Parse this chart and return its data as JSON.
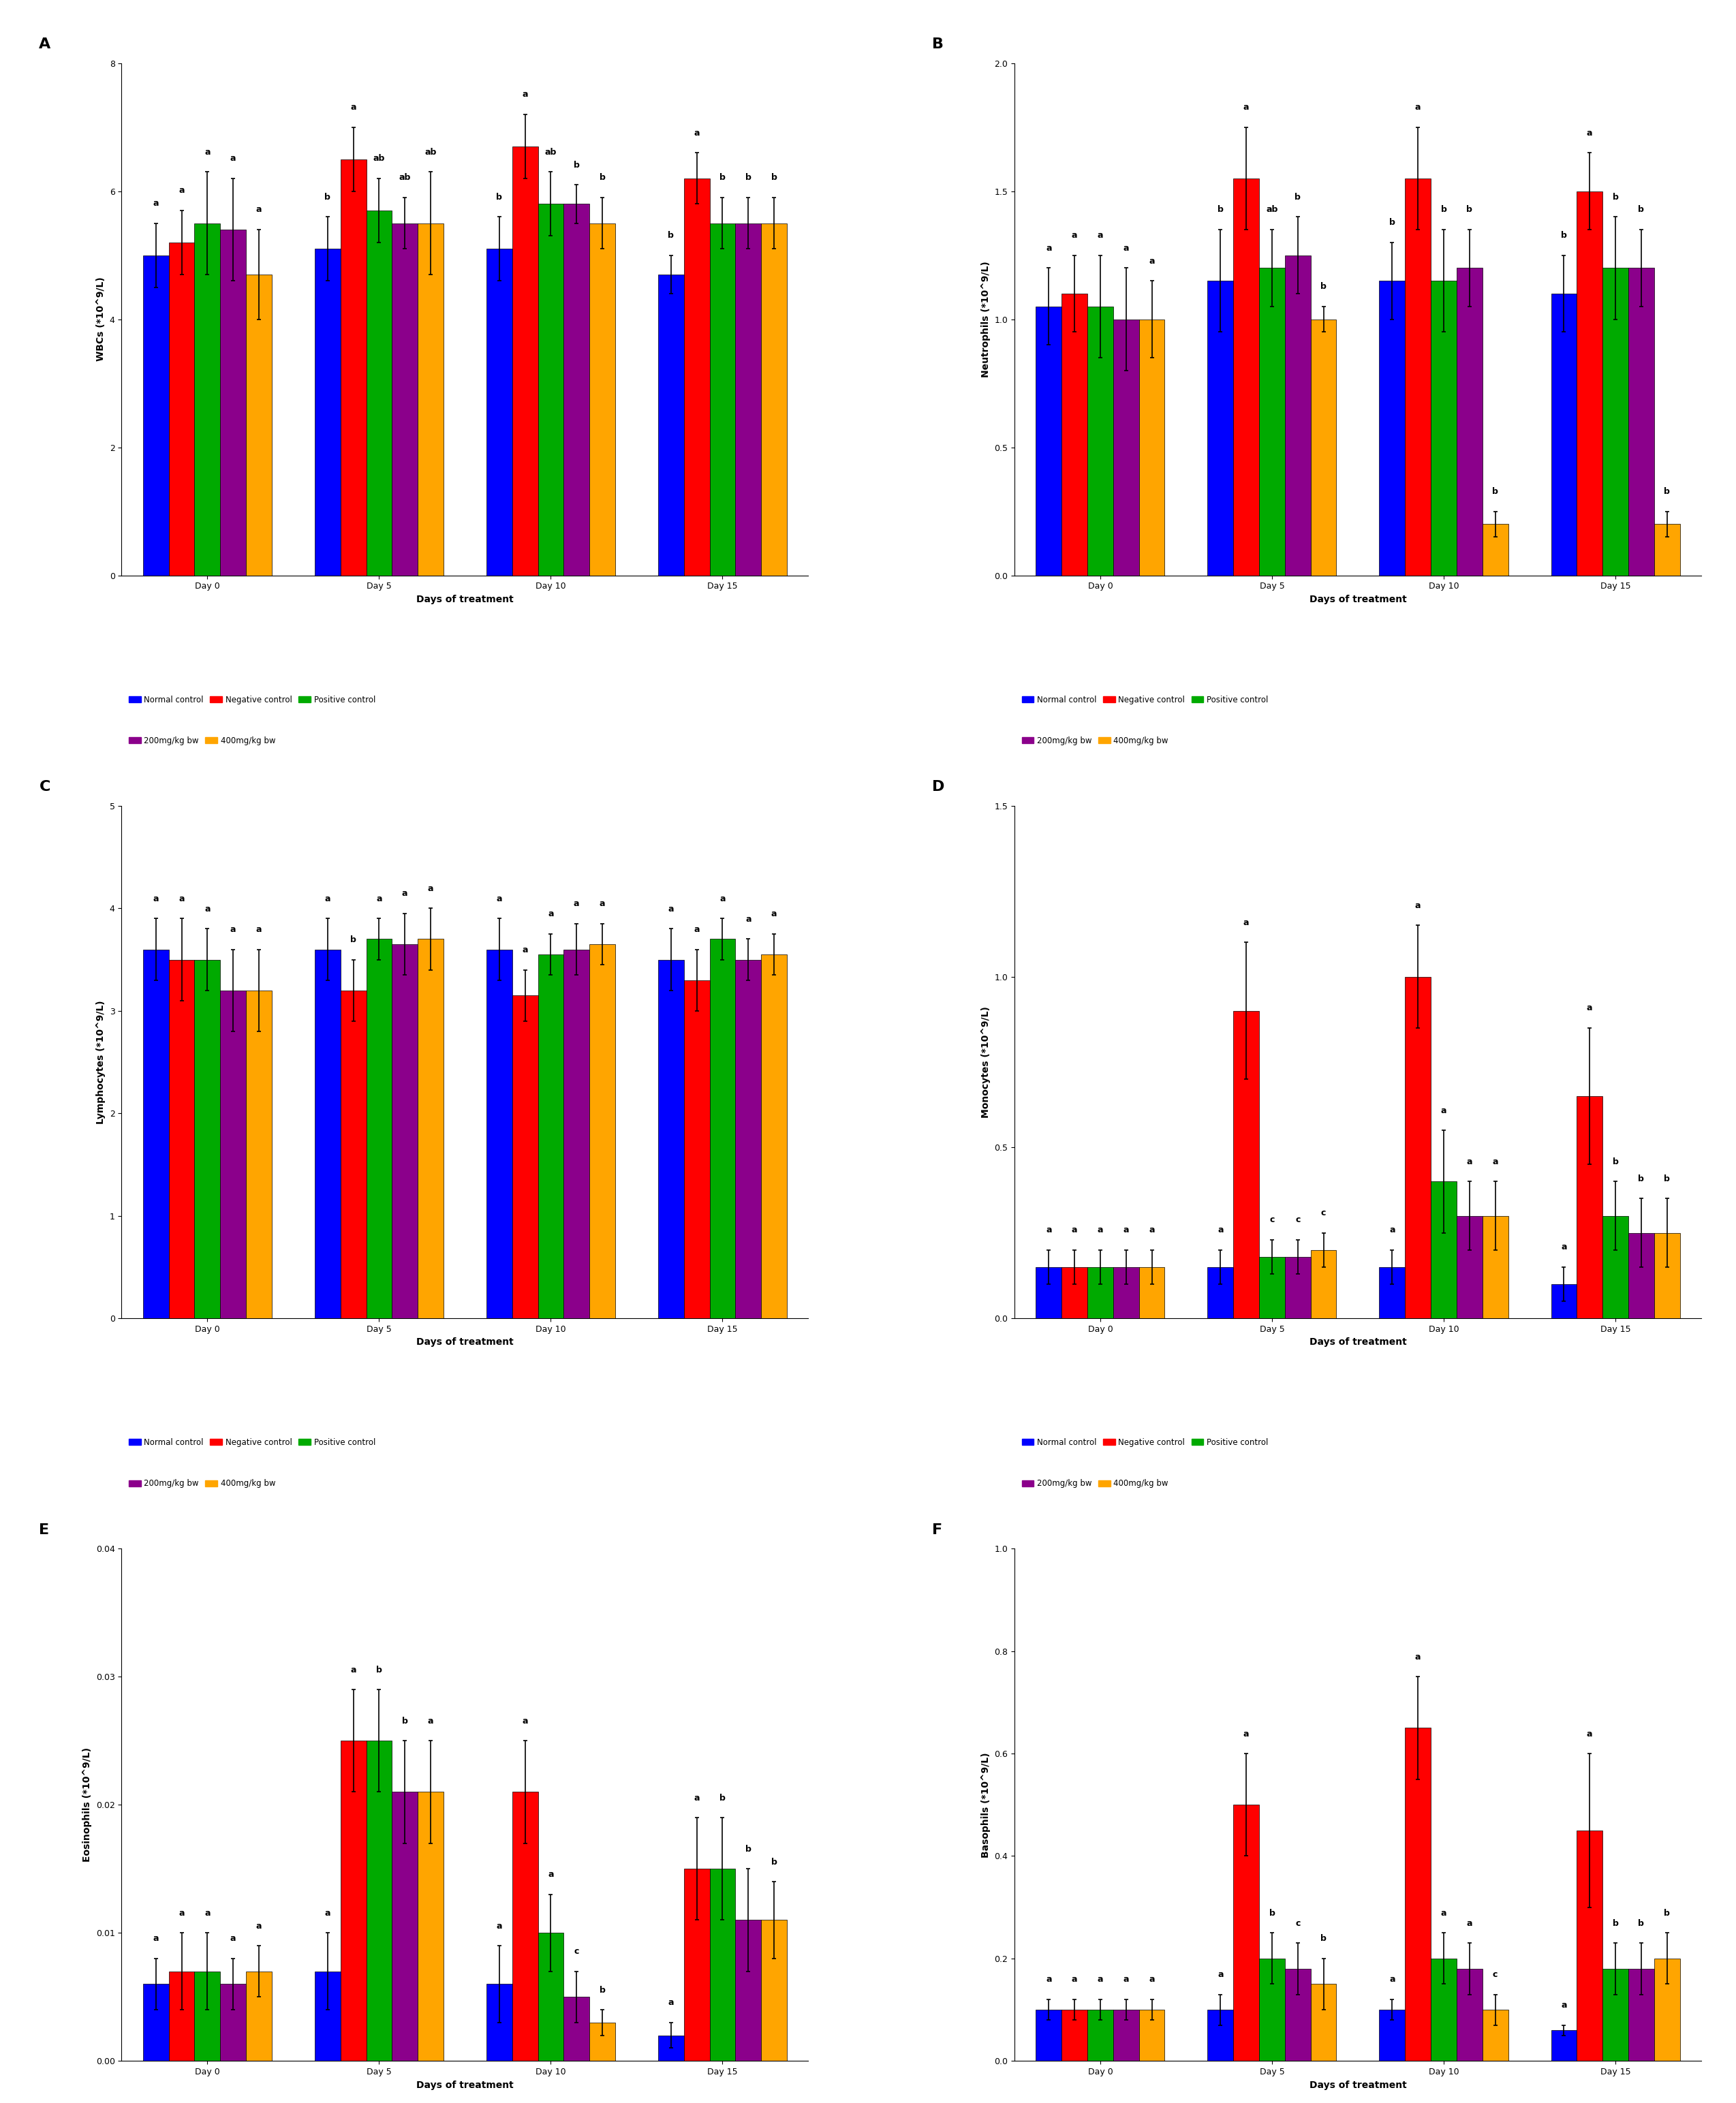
{
  "colors": {
    "normal_control": "#0000FF",
    "negative_control": "#FF0000",
    "positive_control": "#00AA00",
    "dose_200": "#8B008B",
    "dose_400": "#FFA500"
  },
  "bar_width": 0.15,
  "days": [
    "Day 0",
    "Day 5",
    "Day 10",
    "Day 15"
  ],
  "legend_labels": [
    "Normal control",
    "Negative control",
    "Positive control",
    "200mg/kg bw",
    "400mg/kg bw"
  ],
  "A": {
    "title": "A",
    "ylabel": "WBCs (*10^9/L)",
    "ylim": [
      0,
      8
    ],
    "yticks": [
      0,
      2,
      4,
      6,
      8
    ],
    "means": [
      [
        5.0,
        5.1,
        5.1,
        4.7,
        4.7
      ],
      [
        5.2,
        6.5,
        6.7,
        6.2,
        5.6
      ],
      [
        5.5,
        5.7,
        5.8,
        5.5,
        5.8
      ],
      [
        5.4,
        5.5,
        5.8,
        5.5,
        5.5
      ],
      [
        4.7,
        5.5,
        5.5,
        5.5,
        5.5
      ]
    ],
    "errors": [
      [
        0.5,
        0.5,
        0.5,
        0.3,
        0.3
      ],
      [
        0.5,
        0.5,
        0.5,
        0.4,
        0.4
      ],
      [
        0.8,
        0.5,
        0.5,
        0.4,
        0.4
      ],
      [
        0.8,
        0.4,
        0.3,
        0.4,
        0.3
      ],
      [
        0.7,
        0.8,
        0.4,
        0.4,
        0.3
      ]
    ],
    "sig_labels": [
      [
        "a",
        "b",
        "b",
        "b",
        "b"
      ],
      [
        "a",
        "a",
        "a",
        "a",
        "a"
      ],
      [
        "a",
        "ab",
        "ab",
        "b",
        "b"
      ],
      [
        "a",
        "ab",
        "b",
        "b",
        "b"
      ],
      [
        "a",
        "ab",
        "b",
        "b",
        "b"
      ]
    ]
  },
  "B": {
    "title": "B",
    "ylabel": "Neutrophils (*10^9/L)",
    "ylim": [
      0,
      2.0
    ],
    "yticks": [
      0.0,
      0.5,
      1.0,
      1.5,
      2.0
    ],
    "means": [
      [
        1.05,
        1.15,
        1.15,
        1.1,
        1.15
      ],
      [
        1.1,
        1.55,
        1.55,
        1.5,
        1.5
      ],
      [
        1.05,
        1.2,
        1.15,
        1.2,
        1.2
      ],
      [
        1.0,
        1.25,
        1.2,
        1.2,
        1.2
      ],
      [
        1.0,
        1.0,
        0.2,
        0.2,
        1.2
      ]
    ],
    "errors": [
      [
        0.15,
        0.2,
        0.15,
        0.15,
        0.15
      ],
      [
        0.15,
        0.2,
        0.2,
        0.15,
        0.15
      ],
      [
        0.2,
        0.15,
        0.2,
        0.2,
        0.2
      ],
      [
        0.2,
        0.15,
        0.15,
        0.15,
        0.15
      ],
      [
        0.15,
        0.05,
        0.05,
        0.05,
        0.1
      ]
    ],
    "sig_labels": [
      [
        "a",
        "b",
        "b",
        "b",
        "b"
      ],
      [
        "a",
        "a",
        "a",
        "a",
        "a"
      ],
      [
        "a",
        "ab",
        "b",
        "b",
        "b"
      ],
      [
        "a",
        "b",
        "b",
        "b",
        "b"
      ],
      [
        "a",
        "b",
        "b",
        "b",
        "b"
      ]
    ]
  },
  "C": {
    "title": "C",
    "ylabel": "Lymphocytes (*10^9/L)",
    "ylim": [
      0,
      5
    ],
    "yticks": [
      0,
      1,
      2,
      3,
      4,
      5
    ],
    "means": [
      [
        3.6,
        3.6,
        3.6,
        3.5,
        3.6
      ],
      [
        3.5,
        3.2,
        3.15,
        3.3,
        3.5
      ],
      [
        3.5,
        3.7,
        3.55,
        3.7,
        3.7
      ],
      [
        3.2,
        3.65,
        3.6,
        3.5,
        3.7
      ],
      [
        3.2,
        3.7,
        3.65,
        3.55,
        3.7
      ]
    ],
    "errors": [
      [
        0.3,
        0.3,
        0.3,
        0.3,
        0.3
      ],
      [
        0.4,
        0.3,
        0.25,
        0.3,
        0.25
      ],
      [
        0.3,
        0.2,
        0.2,
        0.2,
        0.2
      ],
      [
        0.4,
        0.3,
        0.25,
        0.2,
        0.2
      ],
      [
        0.4,
        0.3,
        0.2,
        0.2,
        0.2
      ]
    ],
    "sig_labels": [
      [
        "a",
        "a",
        "a",
        "a",
        "a"
      ],
      [
        "a",
        "b",
        "a",
        "a",
        "a"
      ],
      [
        "a",
        "a",
        "a",
        "a",
        "a"
      ],
      [
        "a",
        "a",
        "a",
        "a",
        "a"
      ],
      [
        "a",
        "a",
        "a",
        "a",
        "a"
      ]
    ]
  },
  "D": {
    "title": "D",
    "ylabel": "Monocytes (*10^9/L)",
    "ylim": [
      0,
      1.5
    ],
    "yticks": [
      0.0,
      0.5,
      1.0,
      1.5
    ],
    "means": [
      [
        0.15,
        0.15,
        0.15,
        0.1,
        0.15
      ],
      [
        0.15,
        0.9,
        1.0,
        0.65,
        0.15
      ],
      [
        0.15,
        0.18,
        0.4,
        0.3,
        0.3
      ],
      [
        0.15,
        0.18,
        0.3,
        0.25,
        0.25
      ],
      [
        0.15,
        0.2,
        0.3,
        0.25,
        0.25
      ]
    ],
    "errors": [
      [
        0.05,
        0.05,
        0.05,
        0.05,
        0.05
      ],
      [
        0.05,
        0.2,
        0.15,
        0.2,
        0.15
      ],
      [
        0.05,
        0.05,
        0.15,
        0.1,
        0.1
      ],
      [
        0.05,
        0.05,
        0.1,
        0.1,
        0.1
      ],
      [
        0.05,
        0.05,
        0.1,
        0.1,
        0.1
      ]
    ],
    "sig_labels": [
      [
        "a",
        "a",
        "a",
        "a",
        "a"
      ],
      [
        "a",
        "a",
        "a",
        "a",
        "a"
      ],
      [
        "a",
        "c",
        "a",
        "b",
        "b"
      ],
      [
        "a",
        "c",
        "a",
        "b",
        "b"
      ],
      [
        "a",
        "c",
        "a",
        "b",
        "b"
      ]
    ]
  },
  "E": {
    "title": "E",
    "ylabel": "Eosinophils (*10^9/L)",
    "ylim": [
      0,
      0.04
    ],
    "yticks": [
      0.0,
      0.01,
      0.02,
      0.03,
      0.04
    ],
    "means": [
      [
        0.006,
        0.007,
        0.006,
        0.002,
        0.006
      ],
      [
        0.007,
        0.025,
        0.021,
        0.015,
        0.026
      ],
      [
        0.007,
        0.025,
        0.01,
        0.015,
        0.025
      ],
      [
        0.006,
        0.021,
        0.005,
        0.011,
        0.01
      ],
      [
        0.007,
        0.021,
        0.003,
        0.011,
        0.01
      ]
    ],
    "errors": [
      [
        0.002,
        0.003,
        0.003,
        0.001,
        0.002
      ],
      [
        0.003,
        0.004,
        0.004,
        0.004,
        0.004
      ],
      [
        0.003,
        0.004,
        0.003,
        0.004,
        0.004
      ],
      [
        0.002,
        0.004,
        0.002,
        0.004,
        0.003
      ],
      [
        0.002,
        0.004,
        0.001,
        0.003,
        0.003
      ]
    ],
    "sig_labels": [
      [
        "a",
        "a",
        "a",
        "a",
        "a"
      ],
      [
        "a",
        "a",
        "a",
        "a",
        "a"
      ],
      [
        "a",
        "b",
        "a",
        "b",
        "b"
      ],
      [
        "a",
        "b",
        "c",
        "b",
        "b"
      ],
      [
        "a",
        "a",
        "b",
        "b",
        "b"
      ]
    ]
  },
  "F": {
    "title": "F",
    "ylabel": "Basophils (*10^9/L)",
    "ylim": [
      0,
      1.0
    ],
    "yticks": [
      0.0,
      0.2,
      0.4,
      0.6,
      0.8,
      1.0
    ],
    "means": [
      [
        0.1,
        0.1,
        0.1,
        0.06,
        0.1
      ],
      [
        0.1,
        0.5,
        0.65,
        0.45,
        0.1
      ],
      [
        0.1,
        0.2,
        0.2,
        0.18,
        0.2
      ],
      [
        0.1,
        0.18,
        0.18,
        0.18,
        0.2
      ],
      [
        0.1,
        0.15,
        0.1,
        0.2,
        0.2
      ]
    ],
    "errors": [
      [
        0.02,
        0.03,
        0.02,
        0.01,
        0.02
      ],
      [
        0.02,
        0.1,
        0.1,
        0.15,
        0.05
      ],
      [
        0.02,
        0.05,
        0.05,
        0.05,
        0.05
      ],
      [
        0.02,
        0.05,
        0.05,
        0.05,
        0.05
      ],
      [
        0.02,
        0.05,
        0.03,
        0.05,
        0.05
      ]
    ],
    "sig_labels": [
      [
        "a",
        "a",
        "a",
        "a",
        "a"
      ],
      [
        "a",
        "a",
        "a",
        "a",
        "a"
      ],
      [
        "a",
        "b",
        "a",
        "b",
        "b"
      ],
      [
        "a",
        "c",
        "a",
        "b",
        "b"
      ],
      [
        "a",
        "b",
        "c",
        "b",
        "b"
      ]
    ]
  }
}
